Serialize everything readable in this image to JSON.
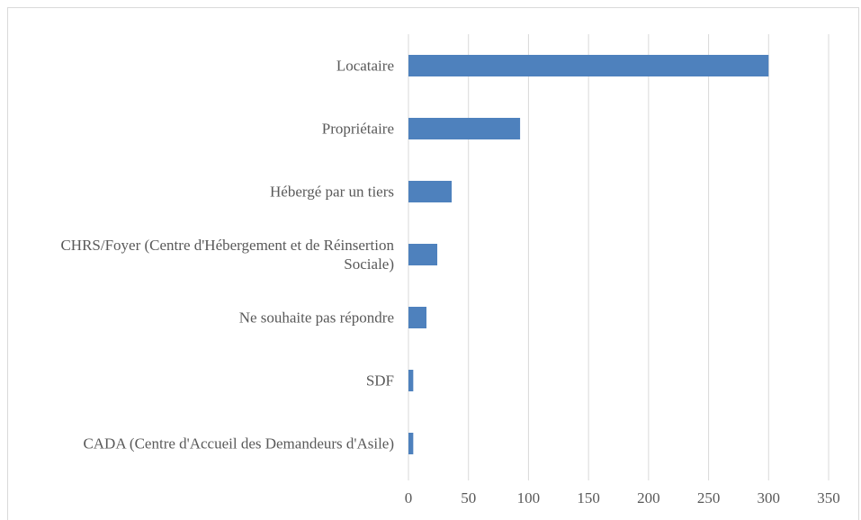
{
  "chart_data": {
    "type": "bar",
    "orientation": "horizontal",
    "categories": [
      "Locataire",
      "Propriétaire",
      "Hébergé par un tiers",
      "CHRS/Foyer (Centre d'Hébergement et de Réinsertion Sociale)",
      "Ne souhaite pas répondre",
      "SDF",
      "CADA (Centre d'Accueil des Demandeurs d'Asile)"
    ],
    "values": [
      300,
      93,
      36,
      24,
      15,
      4,
      4
    ],
    "color": "#4e81bd",
    "xlim": [
      0,
      350
    ],
    "xticks": [
      0,
      50,
      100,
      150,
      200,
      250,
      300,
      350
    ],
    "grid": true
  }
}
